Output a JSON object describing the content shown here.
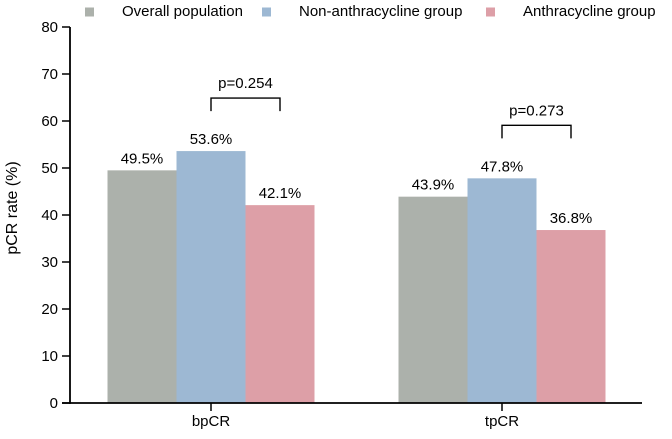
{
  "chart_data": {
    "type": "bar",
    "title": "",
    "ylabel": "pCR rate (%)",
    "xlabel": "",
    "ylim": [
      0,
      80
    ],
    "ytick_step": 10,
    "ytick_labels": [
      "0",
      "10",
      "20",
      "30",
      "40",
      "50",
      "60",
      "70",
      "80"
    ],
    "categories": [
      "bpCR",
      "tpCR"
    ],
    "series": [
      {
        "name": "Overall population",
        "color": "#acb1ab",
        "values": [
          49.5,
          43.9
        ],
        "labels": [
          "49.5%",
          "43.9%"
        ]
      },
      {
        "name": "Non-anthracycline group",
        "color": "#9db8d3",
        "values": [
          53.6,
          47.8
        ],
        "labels": [
          "53.6%",
          "47.8%"
        ]
      },
      {
        "name": "Anthracycline group",
        "color": "#dd9fa7",
        "values": [
          42.1,
          36.8
        ],
        "labels": [
          "42.1%",
          "36.8%"
        ]
      }
    ],
    "annotations": [
      {
        "label": "p=0.254",
        "category": "bpCR",
        "from_series": "Non-anthracycline group",
        "to_series": "Anthracycline group"
      },
      {
        "label": "p=0.273",
        "category": "tpCR",
        "from_series": "Non-anthracycline group",
        "to_series": "Anthracycline group"
      }
    ],
    "legend_position": "top",
    "grid": false,
    "axis_color": "#000000",
    "text_color": "#000000"
  }
}
